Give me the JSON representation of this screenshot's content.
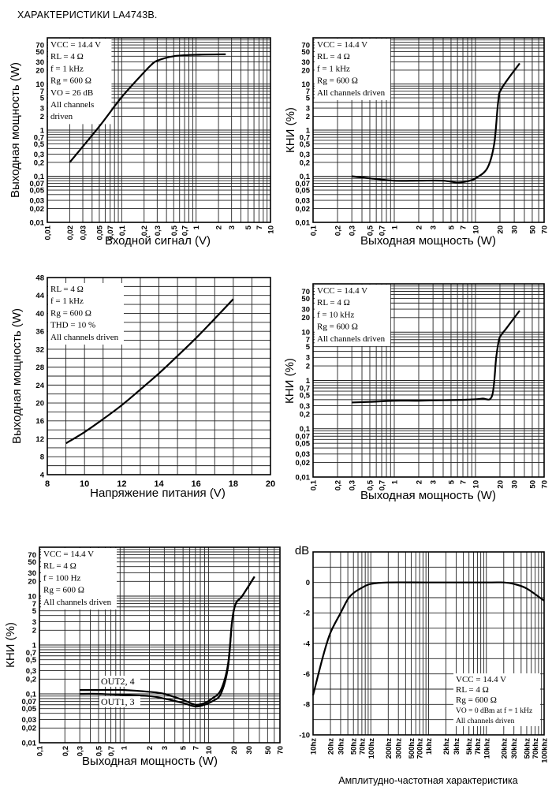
{
  "page": {
    "title": "ХАРАКТЕРИСТИКИ LA4743B."
  },
  "chart_data": [
    {
      "id": "c1",
      "type": "line",
      "title": "",
      "xlabel": "Входной сигнал (V)",
      "ylabel": "Выходная мощность (W)",
      "x_scale": "log",
      "y_scale": "log",
      "xlim": [
        0.01,
        10
      ],
      "ylim": [
        0.01,
        100
      ],
      "x_ticks": [
        "0,01",
        "0,02",
        "0,03",
        "0,05",
        "0,07",
        "0,1",
        "0,2",
        "0,3",
        "0,5",
        "0,7",
        "1",
        "2",
        "3",
        "5",
        "7",
        "10"
      ],
      "y_ticks": [
        "70",
        "50",
        "30",
        "20",
        "10",
        "7",
        "5",
        "3",
        "2",
        "1",
        "0,7",
        "0,5",
        "0,3",
        "0,2",
        "0,1",
        "0,07",
        "0,05",
        "0,03",
        "0,02",
        "0,01"
      ],
      "conditions": [
        "VCC = 14.4 V",
        "RL = 4 Ω",
        "f = 1 kHz",
        "Rg = 600 Ω",
        "VO = 26 dB",
        "All channels",
        "driven"
      ],
      "series": [
        {
          "x": [
            0.02,
            0.05,
            0.1,
            0.2,
            0.25,
            0.3,
            0.5,
            1,
            2.5
          ],
          "y": [
            0.2,
            1.2,
            5.2,
            18,
            26,
            32,
            40,
            43,
            44
          ]
        }
      ]
    },
    {
      "id": "c2",
      "type": "line",
      "title": "",
      "xlabel": "Выходная мощность (W)",
      "ylabel": "КНИ (%)",
      "x_scale": "log",
      "y_scale": "log",
      "xlim": [
        0.1,
        70
      ],
      "ylim": [
        0.01,
        100
      ],
      "x_ticks": [
        "0,1",
        "0,2",
        "0,3",
        "0,5",
        "0,7",
        "1",
        "2",
        "3",
        "5",
        "7",
        "10",
        "20",
        "30",
        "50",
        "70"
      ],
      "y_ticks": [
        "70",
        "50",
        "30",
        "20",
        "10",
        "7",
        "5",
        "3",
        "2",
        "1",
        "0,7",
        "0,5",
        "0,3",
        "0,2",
        "0,1",
        "0,07",
        "0,05",
        "0,03",
        "0,02",
        "0,01"
      ],
      "conditions": [
        "VCC = 14.4 V",
        "RL = 4 Ω",
        "f = 1 kHz",
        "Rg = 600 Ω",
        "All channels driven"
      ],
      "series": [
        {
          "x": [
            0.3,
            0.5,
            1,
            2,
            4,
            6,
            8,
            10,
            14,
            17,
            19,
            21,
            35
          ],
          "y": [
            0.1,
            0.09,
            0.08,
            0.08,
            0.08,
            0.073,
            0.078,
            0.09,
            0.15,
            0.5,
            4,
            8,
            28
          ]
        }
      ]
    },
    {
      "id": "c3",
      "type": "line",
      "title": "",
      "xlabel": "Напряжение питания (V)",
      "ylabel": "Выходная мощность (W)",
      "x_scale": "linear",
      "y_scale": "linear",
      "xlim": [
        8,
        20
      ],
      "ylim": [
        4,
        48
      ],
      "x_ticks": [
        "8",
        "10",
        "12",
        "14",
        "16",
        "18",
        "20"
      ],
      "y_ticks": [
        "4",
        "8",
        "12",
        "16",
        "20",
        "24",
        "28",
        "32",
        "36",
        "40",
        "44",
        "48"
      ],
      "conditions": [
        "RL = 4 Ω",
        "f = 1 kHz",
        "Rg = 600 Ω",
        "THD = 10 %",
        "All channels driven"
      ],
      "series": [
        {
          "x": [
            9,
            10,
            11,
            12,
            13,
            14,
            15,
            16,
            17,
            18
          ],
          "y": [
            11,
            13.5,
            16.4,
            19.5,
            23,
            26.6,
            30.5,
            34.5,
            38.8,
            43.2
          ]
        }
      ]
    },
    {
      "id": "c4",
      "type": "line",
      "title": "",
      "xlabel": "Выходная мощность (W)",
      "ylabel": "КНИ (%)",
      "x_scale": "log",
      "y_scale": "log",
      "xlim": [
        0.1,
        70
      ],
      "ylim": [
        0.01,
        100
      ],
      "x_ticks": [
        "0,1",
        "0,2",
        "0,3",
        "0,5",
        "0,7",
        "1",
        "2",
        "3",
        "5",
        "7",
        "10",
        "20",
        "30",
        "50",
        "70"
      ],
      "y_ticks": [
        "70",
        "50",
        "30",
        "20",
        "10",
        "7",
        "5",
        "3",
        "2",
        "1",
        "0,7",
        "0,5",
        "0,3",
        "0,2",
        "0,1",
        "0,07",
        "0,05",
        "0,03",
        "0,02",
        "0,01"
      ],
      "conditions": [
        "VCC = 14.4 V",
        "RL = 4 Ω",
        "f = 10 kHz",
        "Rg = 600 Ω",
        "All channels driven"
      ],
      "series": [
        {
          "x": [
            0.3,
            0.5,
            1,
            2,
            4,
            8,
            12,
            16,
            18,
            19.5,
            21,
            24,
            35
          ],
          "y": [
            0.35,
            0.36,
            0.38,
            0.38,
            0.39,
            0.4,
            0.42,
            0.48,
            3,
            7,
            9,
            12,
            28
          ]
        }
      ]
    },
    {
      "id": "c5",
      "type": "line",
      "title": "",
      "xlabel": "Выходная мощность (W)",
      "ylabel": "КНИ (%)",
      "x_scale": "log",
      "y_scale": "log",
      "xlim": [
        0.1,
        70
      ],
      "ylim": [
        0.01,
        100
      ],
      "x_ticks": [
        "0,1",
        "0,2",
        "0,3",
        "0,5",
        "0,7",
        "1",
        "2",
        "3",
        "5",
        "7",
        "10",
        "20",
        "30",
        "50",
        "70"
      ],
      "y_ticks": [
        "70",
        "50",
        "30",
        "20",
        "10",
        "7",
        "5",
        "3",
        "2",
        "1",
        "0,7",
        "0,5",
        "0,3",
        "0,2",
        "0,1",
        "0,07",
        "0,05",
        "0,03",
        "0,02",
        "0,01"
      ],
      "conditions": [
        "VCC = 14.4 V",
        "RL = 4 Ω",
        "f = 100 Hz",
        "Rg = 600 Ω",
        "All channels driven"
      ],
      "annotations": [
        "OUT2, 4",
        "OUT1, 3"
      ],
      "series": [
        {
          "name": "OUT2, 4",
          "x": [
            0.3,
            0.5,
            1,
            2,
            3,
            5,
            7,
            9,
            11,
            14,
            17,
            19,
            21,
            25,
            35
          ],
          "y": [
            0.12,
            0.12,
            0.12,
            0.11,
            0.1,
            0.075,
            0.06,
            0.065,
            0.08,
            0.12,
            0.4,
            3,
            7,
            10,
            25
          ]
        },
        {
          "name": "OUT1, 3",
          "x": [
            0.3,
            0.5,
            1,
            2,
            3,
            5,
            7,
            9,
            11,
            14,
            17,
            19,
            21,
            25,
            35
          ],
          "y": [
            0.1,
            0.1,
            0.095,
            0.09,
            0.08,
            0.065,
            0.055,
            0.06,
            0.07,
            0.1,
            0.35,
            3,
            7,
            10,
            25
          ]
        }
      ]
    },
    {
      "id": "c6",
      "type": "line",
      "title": "",
      "xlabel": "Амплитудно-частотная характеристика",
      "ylabel": "dB",
      "x_scale": "log",
      "y_scale": "linear",
      "xlim": [
        10,
        100000
      ],
      "ylim": [
        -10,
        2
      ],
      "x_ticks": [
        "10hz",
        "20hz",
        "30hz",
        "50hz",
        "70hz",
        "100hz",
        "200hz",
        "300hz",
        "500hz",
        "700hz",
        "1khz",
        "2khz",
        "3khz",
        "5khz",
        "7khz",
        "10khz",
        "20khz",
        "30khz",
        "50khz",
        "70khz",
        "100khz"
      ],
      "y_ticks": [
        "0",
        "-2",
        "-4",
        "-6",
        "-8",
        "-10"
      ],
      "conditions": [
        "VCC = 14.4 V",
        "RL = 4 Ω",
        "Rg = 600 Ω",
        "VO = 0 dBm at f = 1 kHz",
        "All channels driven"
      ],
      "series": [
        {
          "x": [
            10,
            15,
            20,
            30,
            40,
            50,
            70,
            100,
            200,
            1000,
            10000,
            20000,
            30000,
            50000,
            100000
          ],
          "y": [
            -7.4,
            -4.8,
            -3.3,
            -2.0,
            -1.1,
            -0.7,
            -0.35,
            -0.1,
            0,
            0,
            0,
            0,
            -0.1,
            -0.4,
            -1.2
          ]
        }
      ]
    }
  ]
}
